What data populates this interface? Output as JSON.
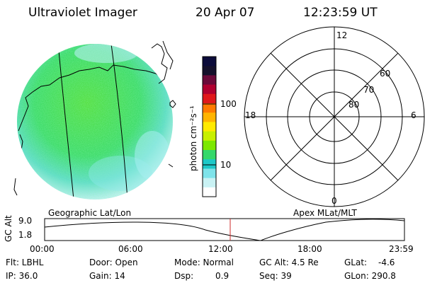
{
  "header": {
    "title": "Ultraviolet Imager",
    "date": "20 Apr 07",
    "time": "12:23:59 UT"
  },
  "colorbar": {
    "label": "photon cm⁻²s⁻¹",
    "ticks": [
      "100",
      "10"
    ],
    "colors": [
      "#0b0b3a",
      "#14102b",
      "#6b0a3a",
      "#b00030",
      "#e0181b",
      "#ff7a00",
      "#ffb400",
      "#ffea00",
      "#c8f000",
      "#7ce800",
      "#35d86a",
      "#1ec8c8",
      "#7ee3ea",
      "#c9f2f4",
      "#ffffff"
    ]
  },
  "image_panel": {
    "label": "Geographic Lat/Lon",
    "main_color": "#42e36a",
    "ring_color": "#8fe8e8"
  },
  "polar_panel": {
    "label": "Apex MLat/MLT",
    "mlt_labels": {
      "top": "12",
      "left": "18",
      "right": "6",
      "bottom": "0"
    },
    "mlat_labels": [
      "60",
      "70",
      "80"
    ]
  },
  "alt_plot": {
    "ylabel": "GC Alt",
    "yticks": [
      "9.0",
      "1.8"
    ],
    "xticks": [
      "00:00",
      "06:00",
      "12:00",
      "18:00",
      "23:59"
    ],
    "marker_color": "#cc2a2a"
  },
  "info": {
    "flt": "Flt: LBHL",
    "ip": "IP: 36.0",
    "door": "Door: Open",
    "gain": "Gain: 14",
    "mode": "Mode: Normal",
    "dsp": "Dsp:",
    "dsp_val": "0.9",
    "gcalt": "GC Alt: 4.5 Re",
    "seq": "Seq: 39",
    "glat": "GLat:",
    "glat_val": "-4.6",
    "glon": "GLon: 290.8"
  }
}
